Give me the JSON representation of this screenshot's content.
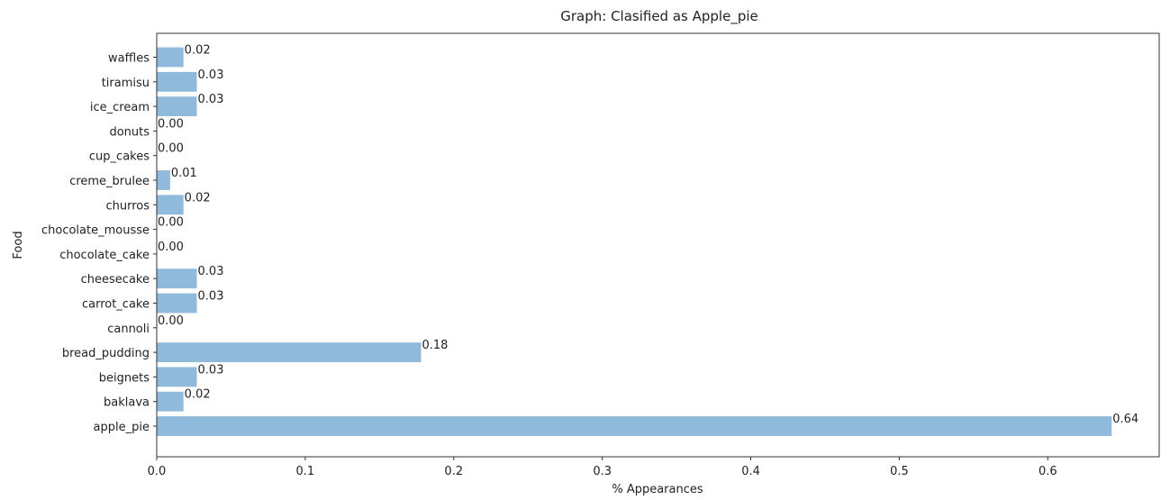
{
  "chart_data": {
    "type": "bar",
    "orientation": "horizontal",
    "title": "Graph: Clasified as Apple_pie",
    "xlabel": "% Appearances",
    "ylabel": "Food",
    "xlim": [
      0,
      0.675
    ],
    "xticks": [
      0.0,
      0.1,
      0.2,
      0.3,
      0.4,
      0.5,
      0.6
    ],
    "xtick_labels": [
      "0.0",
      "0.1",
      "0.2",
      "0.3",
      "0.4",
      "0.5",
      "0.6"
    ],
    "categories": [
      "apple_pie",
      "baklava",
      "beignets",
      "bread_pudding",
      "cannoli",
      "carrot_cake",
      "cheesecake",
      "chocolate_cake",
      "chocolate_mousse",
      "churros",
      "creme_brulee",
      "cup_cakes",
      "donuts",
      "ice_cream",
      "tiramisu",
      "waffles"
    ],
    "values": [
      0.643,
      0.018,
      0.027,
      0.178,
      0.0,
      0.027,
      0.027,
      0.0,
      0.0,
      0.018,
      0.009,
      0.0,
      0.0,
      0.027,
      0.027,
      0.018
    ],
    "value_labels": [
      "0.64",
      "0.02",
      "0.03",
      "0.18",
      "0.00",
      "0.03",
      "0.03",
      "0.00",
      "0.00",
      "0.02",
      "0.01",
      "0.00",
      "0.00",
      "0.03",
      "0.03",
      "0.02"
    ],
    "bar_color": "#8fbadb",
    "grid": false,
    "legend": "none"
  }
}
